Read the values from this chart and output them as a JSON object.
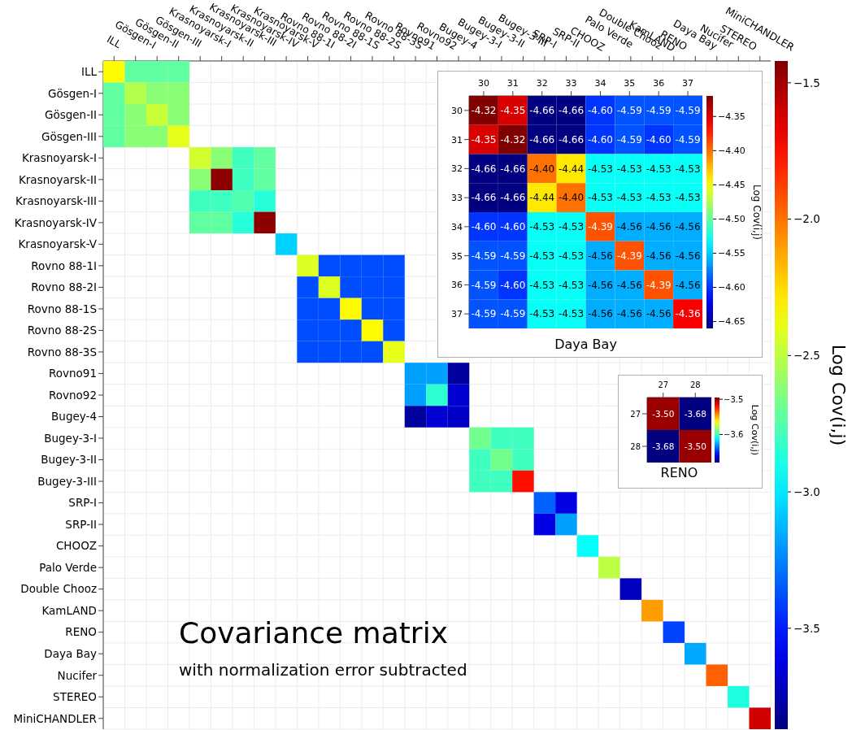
{
  "chart_data": [
    {
      "type": "heatmap",
      "title": "Covariance matrix",
      "subtitle": "with normalization error subtracted",
      "categories": [
        "ILL",
        "Gösgen-I",
        "Gösgen-II",
        "Gösgen-III",
        "Krasnoyarsk-I",
        "Krasnoyarsk-II",
        "Krasnoyarsk-III",
        "Krasnoyarsk-IV",
        "Krasnoyarsk-V",
        "Rovno 88-1I",
        "Rovno 88-2I",
        "Rovno 88-1S",
        "Rovno 88-2S",
        "Rovno 88-3S",
        "Rovno91",
        "Rovno92",
        "Bugey-4",
        "Bugey-3-I",
        "Bugey-3-II",
        "Bugey-3-III",
        "SRP-I",
        "SRP-II",
        "CHOOZ",
        "Palo Verde",
        "Double Chooz",
        "KamLAND",
        "RENO",
        "Daya Bay",
        "Nucifer",
        "STEREO",
        "MiniCHANDLER"
      ],
      "y_categories": [
        "ILL",
        "Gösgen-I",
        "Gösgen-II",
        "Gösgen-III",
        "Krasnoyarsk-I",
        "Krasnoyarsk-II",
        "Krasnoyarsk-III",
        "Krasnoyarsk-IV",
        "Krasnoyarsk-V",
        "Rovno 88-1I",
        "Rovno 88-2I",
        "Rovno 88-1S",
        "Rovno 88-2S",
        "Rovno 88-3S",
        "Rovno91",
        "Rovno92",
        "Bugey-4",
        "Bugey-3-I",
        "Bugey-3-II",
        "Bugey-3-III",
        "SRP-I",
        "SRP-II",
        "CHOOZ",
        "Palo Verde",
        "Double Chooz",
        "KamLAND",
        "RENO",
        "Daya Bay",
        "Nucifer",
        "STEREO",
        "MiniCHANDLER"
      ],
      "cells": [
        [
          -2.33,
          -2.72,
          -2.72,
          -2.72,
          null,
          null,
          null,
          null,
          null,
          null,
          null,
          null,
          null,
          null,
          null,
          null,
          null,
          null,
          null,
          null,
          null,
          null,
          null,
          null,
          null,
          null,
          null,
          null,
          null,
          null,
          null
        ],
        [
          -2.72,
          -2.52,
          -2.62,
          -2.62,
          null,
          null,
          null,
          null,
          null,
          null,
          null,
          null,
          null,
          null,
          null,
          null,
          null,
          null,
          null,
          null,
          null,
          null,
          null,
          null,
          null,
          null,
          null,
          null,
          null,
          null,
          null
        ],
        [
          -2.72,
          -2.62,
          -2.47,
          -2.62,
          null,
          null,
          null,
          null,
          null,
          null,
          null,
          null,
          null,
          null,
          null,
          null,
          null,
          null,
          null,
          null,
          null,
          null,
          null,
          null,
          null,
          null,
          null,
          null,
          null,
          null,
          null
        ],
        [
          -2.72,
          -2.62,
          -2.62,
          -2.4,
          null,
          null,
          null,
          null,
          null,
          null,
          null,
          null,
          null,
          null,
          null,
          null,
          null,
          null,
          null,
          null,
          null,
          null,
          null,
          null,
          null,
          null,
          null,
          null,
          null,
          null,
          null
        ],
        [
          null,
          null,
          null,
          null,
          -2.45,
          -2.62,
          -2.8,
          -2.72,
          null,
          null,
          null,
          null,
          null,
          null,
          null,
          null,
          null,
          null,
          null,
          null,
          null,
          null,
          null,
          null,
          null,
          null,
          null,
          null,
          null,
          null,
          null
        ],
        [
          null,
          null,
          null,
          null,
          -2.62,
          -1.45,
          -2.8,
          -2.72,
          null,
          null,
          null,
          null,
          null,
          null,
          null,
          null,
          null,
          null,
          null,
          null,
          null,
          null,
          null,
          null,
          null,
          null,
          null,
          null,
          null,
          null,
          null
        ],
        [
          null,
          null,
          null,
          null,
          -2.8,
          -2.8,
          -2.76,
          -2.86,
          null,
          null,
          null,
          null,
          null,
          null,
          null,
          null,
          null,
          null,
          null,
          null,
          null,
          null,
          null,
          null,
          null,
          null,
          null,
          null,
          null,
          null,
          null
        ],
        [
          null,
          null,
          null,
          null,
          -2.72,
          -2.72,
          -2.86,
          -1.45,
          null,
          null,
          null,
          null,
          null,
          null,
          null,
          null,
          null,
          null,
          null,
          null,
          null,
          null,
          null,
          null,
          null,
          null,
          null,
          null,
          null,
          null,
          null
        ],
        [
          null,
          null,
          null,
          null,
          null,
          null,
          null,
          null,
          -3.06,
          null,
          null,
          null,
          null,
          null,
          null,
          null,
          null,
          null,
          null,
          null,
          null,
          null,
          null,
          null,
          null,
          null,
          null,
          null,
          null,
          null,
          null
        ],
        [
          null,
          null,
          null,
          null,
          null,
          null,
          null,
          null,
          null,
          -2.42,
          -3.38,
          -3.38,
          -3.38,
          -3.38,
          null,
          null,
          null,
          null,
          null,
          null,
          null,
          null,
          null,
          null,
          null,
          null,
          null,
          null,
          null,
          null,
          null
        ],
        [
          null,
          null,
          null,
          null,
          null,
          null,
          null,
          null,
          null,
          -3.38,
          -2.42,
          -3.38,
          -3.38,
          -3.38,
          null,
          null,
          null,
          null,
          null,
          null,
          null,
          null,
          null,
          null,
          null,
          null,
          null,
          null,
          null,
          null,
          null
        ],
        [
          null,
          null,
          null,
          null,
          null,
          null,
          null,
          null,
          null,
          -3.38,
          -3.38,
          -2.33,
          -3.38,
          -3.38,
          null,
          null,
          null,
          null,
          null,
          null,
          null,
          null,
          null,
          null,
          null,
          null,
          null,
          null,
          null,
          null,
          null
        ],
        [
          null,
          null,
          null,
          null,
          null,
          null,
          null,
          null,
          null,
          -3.38,
          -3.38,
          -3.38,
          -2.33,
          -3.38,
          null,
          null,
          null,
          null,
          null,
          null,
          null,
          null,
          null,
          null,
          null,
          null,
          null,
          null,
          null,
          null,
          null
        ],
        [
          null,
          null,
          null,
          null,
          null,
          null,
          null,
          null,
          null,
          -3.38,
          -3.38,
          -3.38,
          -3.38,
          -2.4,
          null,
          null,
          null,
          null,
          null,
          null,
          null,
          null,
          null,
          null,
          null,
          null,
          null,
          null,
          null,
          null,
          null
        ],
        [
          null,
          null,
          null,
          null,
          null,
          null,
          null,
          null,
          null,
          null,
          null,
          null,
          null,
          null,
          -3.18,
          -3.18,
          -3.8,
          null,
          null,
          null,
          null,
          null,
          null,
          null,
          null,
          null,
          null,
          null,
          null,
          null,
          null
        ],
        [
          null,
          null,
          null,
          null,
          null,
          null,
          null,
          null,
          null,
          null,
          null,
          null,
          null,
          null,
          -3.18,
          -2.84,
          -3.67,
          null,
          null,
          null,
          null,
          null,
          null,
          null,
          null,
          null,
          null,
          null,
          null,
          null,
          null
        ],
        [
          null,
          null,
          null,
          null,
          null,
          null,
          null,
          null,
          null,
          null,
          null,
          null,
          null,
          null,
          -3.8,
          -3.67,
          -3.7,
          null,
          null,
          null,
          null,
          null,
          null,
          null,
          null,
          null,
          null,
          null,
          null,
          null,
          null
        ],
        [
          null,
          null,
          null,
          null,
          null,
          null,
          null,
          null,
          null,
          null,
          null,
          null,
          null,
          null,
          null,
          null,
          null,
          -2.68,
          -2.8,
          -2.8,
          null,
          null,
          null,
          null,
          null,
          null,
          null,
          null,
          null,
          null,
          null
        ],
        [
          null,
          null,
          null,
          null,
          null,
          null,
          null,
          null,
          null,
          null,
          null,
          null,
          null,
          null,
          null,
          null,
          null,
          -2.8,
          -2.68,
          -2.8,
          null,
          null,
          null,
          null,
          null,
          null,
          null,
          null,
          null,
          null,
          null
        ],
        [
          null,
          null,
          null,
          null,
          null,
          null,
          null,
          null,
          null,
          null,
          null,
          null,
          null,
          null,
          null,
          null,
          null,
          -2.8,
          -2.8,
          -1.76,
          null,
          null,
          null,
          null,
          null,
          null,
          null,
          null,
          null,
          null,
          null
        ],
        [
          null,
          null,
          null,
          null,
          null,
          null,
          null,
          null,
          null,
          null,
          null,
          null,
          null,
          null,
          null,
          null,
          null,
          null,
          null,
          null,
          -3.33,
          -3.63,
          null,
          null,
          null,
          null,
          null,
          null,
          null,
          null,
          null
        ],
        [
          null,
          null,
          null,
          null,
          null,
          null,
          null,
          null,
          null,
          null,
          null,
          null,
          null,
          null,
          null,
          null,
          null,
          null,
          null,
          null,
          -3.63,
          -3.18,
          null,
          null,
          null,
          null,
          null,
          null,
          null,
          null,
          null
        ],
        [
          null,
          null,
          null,
          null,
          null,
          null,
          null,
          null,
          null,
          null,
          null,
          null,
          null,
          null,
          null,
          null,
          null,
          null,
          null,
          null,
          null,
          null,
          -2.94,
          null,
          null,
          null,
          null,
          null,
          null,
          null,
          null
        ],
        [
          null,
          null,
          null,
          null,
          null,
          null,
          null,
          null,
          null,
          null,
          null,
          null,
          null,
          null,
          null,
          null,
          null,
          null,
          null,
          null,
          null,
          null,
          null,
          -2.5,
          null,
          null,
          null,
          null,
          null,
          null,
          null
        ],
        [
          null,
          null,
          null,
          null,
          null,
          null,
          null,
          null,
          null,
          null,
          null,
          null,
          null,
          null,
          null,
          null,
          null,
          null,
          null,
          null,
          null,
          null,
          null,
          null,
          -3.72,
          null,
          null,
          null,
          null,
          null,
          null
        ],
        [
          null,
          null,
          null,
          null,
          null,
          null,
          null,
          null,
          null,
          null,
          null,
          null,
          null,
          null,
          null,
          null,
          null,
          null,
          null,
          null,
          null,
          null,
          null,
          null,
          null,
          -2.1,
          null,
          null,
          null,
          null,
          null
        ],
        [
          null,
          null,
          null,
          null,
          null,
          null,
          null,
          null,
          null,
          null,
          null,
          null,
          null,
          null,
          null,
          null,
          null,
          null,
          null,
          null,
          null,
          null,
          null,
          null,
          null,
          null,
          -3.4,
          null,
          null,
          null,
          null
        ],
        [
          null,
          null,
          null,
          null,
          null,
          null,
          null,
          null,
          null,
          null,
          null,
          null,
          null,
          null,
          null,
          null,
          null,
          null,
          null,
          null,
          null,
          null,
          null,
          null,
          null,
          null,
          null,
          -3.16,
          null,
          null,
          null
        ],
        [
          null,
          null,
          null,
          null,
          null,
          null,
          null,
          null,
          null,
          null,
          null,
          null,
          null,
          null,
          null,
          null,
          null,
          null,
          null,
          null,
          null,
          null,
          null,
          null,
          null,
          null,
          null,
          null,
          -1.96,
          null,
          null
        ],
        [
          null,
          null,
          null,
          null,
          null,
          null,
          null,
          null,
          null,
          null,
          null,
          null,
          null,
          null,
          null,
          null,
          null,
          null,
          null,
          null,
          null,
          null,
          null,
          null,
          null,
          null,
          null,
          null,
          null,
          -2.88,
          null
        ],
        [
          null,
          null,
          null,
          null,
          null,
          null,
          null,
          null,
          null,
          null,
          null,
          null,
          null,
          null,
          null,
          null,
          null,
          null,
          null,
          null,
          null,
          null,
          null,
          null,
          null,
          null,
          null,
          null,
          null,
          null,
          -1.62
        ]
      ],
      "clim": [
        -3.87,
        -1.42
      ],
      "cticks": [
        {
          "value": -1.5,
          "label": "−1.5"
        },
        {
          "value": -2.0,
          "label": "−2.0"
        },
        {
          "value": -2.5,
          "label": "−2.5"
        },
        {
          "value": -3.0,
          "label": "−3.0"
        },
        {
          "value": -3.5,
          "label": "−3.5"
        }
      ],
      "clabel": "Log Cov(i,j)",
      "grid": true
    },
    {
      "type": "heatmap",
      "xlabel": "Daya Bay",
      "categories": [
        "30",
        "31",
        "32",
        "33",
        "34",
        "35",
        "36",
        "37"
      ],
      "y_categories": [
        "30",
        "31",
        "32",
        "33",
        "34",
        "35",
        "36",
        "37"
      ],
      "cells": [
        [
          -4.32,
          -4.35,
          -4.66,
          -4.66,
          -4.6,
          -4.59,
          -4.59,
          -4.59
        ],
        [
          -4.35,
          -4.32,
          -4.66,
          -4.66,
          -4.6,
          -4.59,
          -4.6,
          -4.59
        ],
        [
          -4.66,
          -4.66,
          -4.4,
          -4.44,
          -4.53,
          -4.53,
          -4.53,
          -4.53
        ],
        [
          -4.66,
          -4.66,
          -4.44,
          -4.4,
          -4.53,
          -4.53,
          -4.53,
          -4.53
        ],
        [
          -4.6,
          -4.6,
          -4.53,
          -4.53,
          -4.39,
          -4.56,
          -4.56,
          -4.56
        ],
        [
          -4.59,
          -4.59,
          -4.53,
          -4.53,
          -4.56,
          -4.39,
          -4.56,
          -4.56
        ],
        [
          -4.59,
          -4.6,
          -4.53,
          -4.53,
          -4.56,
          -4.56,
          -4.39,
          -4.56
        ],
        [
          -4.59,
          -4.59,
          -4.53,
          -4.53,
          -4.56,
          -4.56,
          -4.56,
          -4.36
        ]
      ],
      "cell_labels": [
        [
          "-4.32",
          "-4.35",
          "-4.66",
          "-4.66",
          "-4.60",
          "-4.59",
          "-4.59",
          "-4.59"
        ],
        [
          "-4.35",
          "-4.32",
          "-4.66",
          "-4.66",
          "-4.60",
          "-4.59",
          "-4.60",
          "-4.59"
        ],
        [
          "-4.66",
          "-4.66",
          "-4.40",
          "-4.44",
          "-4.53",
          "-4.53",
          "-4.53",
          "-4.53"
        ],
        [
          "-4.66",
          "-4.66",
          "-4.44",
          "-4.40",
          "-4.53",
          "-4.53",
          "-4.53",
          "-4.53"
        ],
        [
          "-4.60",
          "-4.60",
          "-4.53",
          "-4.53",
          "-4.39",
          "-4.56",
          "-4.56",
          "-4.56"
        ],
        [
          "-4.59",
          "-4.59",
          "-4.53",
          "-4.53",
          "-4.56",
          "-4.39",
          "-4.56",
          "-4.56"
        ],
        [
          "-4.59",
          "-4.60",
          "-4.53",
          "-4.53",
          "-4.56",
          "-4.56",
          "-4.39",
          "-4.56"
        ],
        [
          "-4.59",
          "-4.59",
          "-4.53",
          "-4.53",
          "-4.56",
          "-4.56",
          "-4.56",
          "-4.36"
        ]
      ],
      "clim": [
        -4.66,
        -4.32
      ],
      "cticks": [
        {
          "value": -4.35,
          "label": "−4.35"
        },
        {
          "value": -4.4,
          "label": "−4.40"
        },
        {
          "value": -4.45,
          "label": "−4.45"
        },
        {
          "value": -4.5,
          "label": "−4.50"
        },
        {
          "value": -4.55,
          "label": "−4.55"
        },
        {
          "value": -4.6,
          "label": "−4.60"
        },
        {
          "value": -4.65,
          "label": "−4.65"
        }
      ],
      "clabel": "Log Cov(i,j)"
    },
    {
      "type": "heatmap",
      "xlabel": "RENO",
      "categories": [
        "27",
        "28"
      ],
      "y_categories": [
        "27",
        "28"
      ],
      "cells": [
        [
          -3.5,
          -3.68
        ],
        [
          -3.68,
          -3.5
        ]
      ],
      "cell_labels": [
        [
          "-3.50",
          "-3.68"
        ],
        [
          "-3.68",
          "-3.50"
        ]
      ],
      "clim": [
        -3.68,
        -3.495
      ],
      "cticks": [
        {
          "value": -3.5,
          "label": "−3.5"
        },
        {
          "value": -3.6,
          "label": "−3.6"
        }
      ],
      "clabel": "Log Cov(i,j)"
    }
  ]
}
